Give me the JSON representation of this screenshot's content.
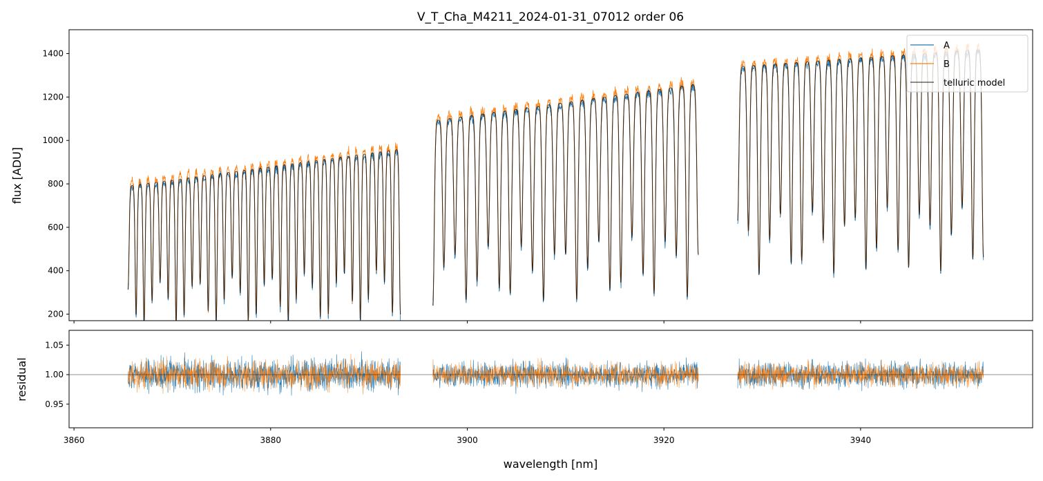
{
  "chart_data": [
    {
      "type": "line",
      "title": "V_T_Cha_M4211_2024-01-31_07012  order 06",
      "xlabel": "",
      "ylabel": "flux [ADU]",
      "xlim": [
        3859.5,
        3957.5
      ],
      "ylim": [
        170,
        1510
      ],
      "xticks": [
        3860,
        3880,
        3900,
        3920,
        3940
      ],
      "yticks": [
        200,
        400,
        600,
        800,
        1000,
        1200,
        1400
      ],
      "ytick_labels": [
        "200",
        "400",
        "600",
        "800",
        "1000",
        "1200",
        "1400"
      ],
      "legend": {
        "position": "top-right",
        "entries": [
          "A",
          "B",
          "telluric model"
        ]
      },
      "series": [
        {
          "name": "A",
          "color": "#1f77b4"
        },
        {
          "name": "B",
          "color": "#ff7f0e"
        },
        {
          "name": "telluric model",
          "color": "#000000"
        }
      ],
      "segments": [
        {
          "x_start": 3865.5,
          "x_end": 3893.2,
          "continuum_start": 790,
          "continuum_end": 960,
          "lines": 34,
          "line_depth_frac": 0.82
        },
        {
          "x_start": 3896.5,
          "x_end": 3923.5,
          "continuum_start": 1090,
          "continuum_end": 1260,
          "lines": 24,
          "line_depth_frac": 0.78
        },
        {
          "x_start": 3927.5,
          "x_end": 3952.5,
          "continuum_start": 1340,
          "continuum_end": 1420,
          "lines": 23,
          "line_depth_frac": 0.72
        }
      ]
    },
    {
      "type": "line",
      "title": "",
      "xlabel": "wavelength [nm]",
      "ylabel": "residual",
      "xlim": [
        3859.5,
        3957.5
      ],
      "ylim": [
        0.91,
        1.075
      ],
      "xticks": [
        3860,
        3880,
        3900,
        3920,
        3940
      ],
      "xtick_labels": [
        "3860",
        "3880",
        "3900",
        "3920",
        "3940"
      ],
      "yticks": [
        0.95,
        1.0,
        1.05
      ],
      "ytick_labels": [
        "0.95",
        "1.00",
        "1.05"
      ],
      "reference_line": 1.0,
      "series": [
        {
          "name": "A",
          "color": "#1f77b4",
          "scatter": 0.028
        },
        {
          "name": "B",
          "color": "#ff7f0e",
          "scatter": 0.025
        }
      ],
      "segments": [
        {
          "x_start": 3865.5,
          "x_end": 3893.2
        },
        {
          "x_start": 3896.5,
          "x_end": 3923.5
        },
        {
          "x_start": 3927.5,
          "x_end": 3952.5
        }
      ]
    }
  ]
}
